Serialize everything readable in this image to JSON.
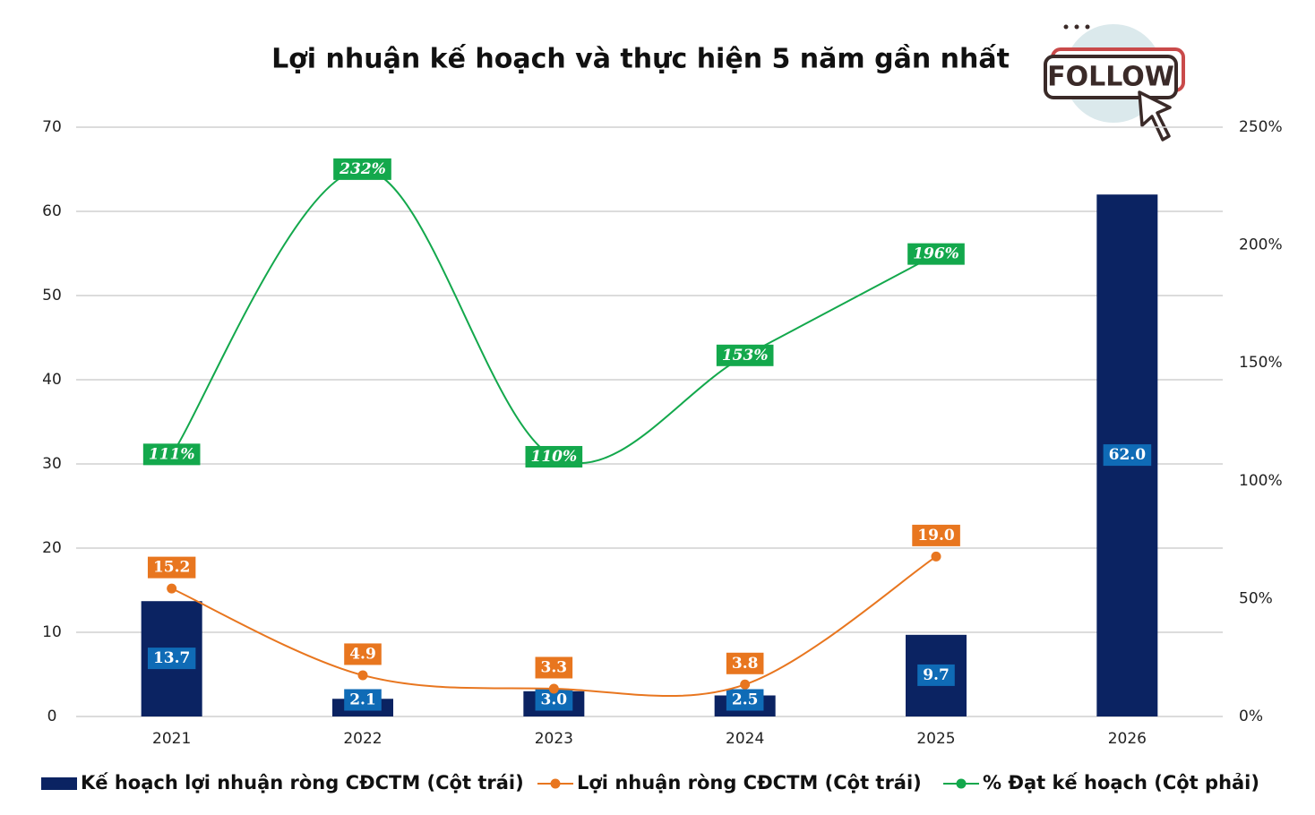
{
  "badge": "FOLLOW",
  "chart_data": {
    "type": "bar",
    "title": "Lợi nhuận kế hoạch và thực hiện 5 năm gần nhất",
    "categories": [
      "2021",
      "2022",
      "2023",
      "2024",
      "2025",
      "2026"
    ],
    "ylim": [
      0,
      70
    ],
    "yticks": [
      0,
      10,
      20,
      30,
      40,
      50,
      60,
      70
    ],
    "y2lim": [
      0,
      250
    ],
    "y2ticks": [
      {
        "value": 0,
        "label": "0%"
      },
      {
        "value": 50,
        "label": "50%"
      },
      {
        "value": 100,
        "label": "100%"
      },
      {
        "value": 150,
        "label": "150%"
      },
      {
        "value": 200,
        "label": "200%"
      },
      {
        "value": 250,
        "label": "250%"
      }
    ],
    "grid": true,
    "legend": "bottom",
    "series": [
      {
        "name": "Kế hoạch lợi nhuận ròng CĐCTM (Cột trái)",
        "type": "bar",
        "color": "#0b2362",
        "values": [
          13.7,
          2.1,
          3.0,
          2.5,
          9.7,
          62.0
        ],
        "value_labels": [
          "13.7",
          "2.1",
          "3.0",
          "2.5",
          "9.7",
          "62.0"
        ]
      },
      {
        "name": "Lợi nhuận ròng CĐCTM (Cột trái)",
        "type": "line",
        "color": "#e8761f",
        "values": [
          15.2,
          4.9,
          3.3,
          3.8,
          19.0,
          null
        ],
        "value_labels": [
          "15.2",
          "4.9",
          "3.3",
          "3.8",
          "19.0",
          null
        ]
      },
      {
        "name": "% Đạt kế hoạch (Cột phải)",
        "type": "line",
        "axis": "y2",
        "color": "#13a84c",
        "values": [
          111,
          232,
          110,
          153,
          196,
          null
        ],
        "value_labels": [
          "111%",
          "232%",
          "110%",
          "153%",
          "196%",
          null
        ]
      }
    ]
  }
}
